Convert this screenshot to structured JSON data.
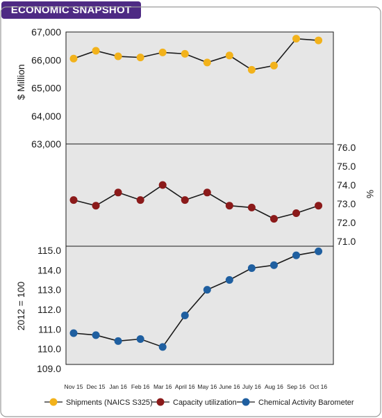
{
  "header": {
    "badge": "ECONOMIC SNAPSHOT"
  },
  "colors": {
    "badge_bg": "#4e2a84",
    "shipments": "#f2b21b",
    "capacity": "#8b1a1a",
    "cab": "#1f5fa0",
    "panel_bg": "#e6e6e6"
  },
  "chart_data": [
    {
      "type": "line",
      "ylabel": "$ Million",
      "ylim": [
        63000,
        67000
      ],
      "yticks": [
        "67,000",
        "66,000",
        "65,000",
        "64,000",
        "63,000"
      ],
      "categories": [
        "Nov 15",
        "Dec 15",
        "Jan 16",
        "Feb 16",
        "Mar 16",
        "April 16",
        "May 16",
        "June 16",
        "July 16",
        "Aug 16",
        "Sep 16",
        "Oct 16"
      ],
      "series": [
        {
          "name": "Shipments (NAICS S325)",
          "values": [
            66050,
            66330,
            66130,
            66090,
            66270,
            66220,
            65910,
            66160,
            65650,
            65800,
            66760,
            66700
          ]
        }
      ]
    },
    {
      "type": "line",
      "ylabel": "%",
      "ylim": [
        71.0,
        76.0
      ],
      "yticks": [
        "76.0",
        "75.0",
        "74.0",
        "73.0",
        "72.0",
        "71.0"
      ],
      "categories": [
        "Nov 15",
        "Dec 15",
        "Jan 16",
        "Feb 16",
        "Mar 16",
        "April 16",
        "May 16",
        "June 16",
        "July 16",
        "Aug 16",
        "Sep 16",
        "Oct 16"
      ],
      "series": [
        {
          "name": "Capacity utilization",
          "values": [
            73.2,
            72.9,
            73.6,
            73.2,
            74.0,
            73.2,
            73.6,
            72.9,
            72.8,
            72.2,
            72.5,
            72.9
          ]
        }
      ]
    },
    {
      "type": "line",
      "ylabel": "2012 = 100",
      "ylim": [
        109.0,
        115.0
      ],
      "yticks": [
        "115.0",
        "114.0",
        "113.0",
        "112.0",
        "111.0",
        "110.0",
        "109.0"
      ],
      "categories": [
        "Nov 15",
        "Dec 15",
        "Jan 16",
        "Feb 16",
        "Mar 16",
        "April 16",
        "May 16",
        "June 16",
        "July 16",
        "Aug 16",
        "Sep 16",
        "Oct 16"
      ],
      "series": [
        {
          "name": "Chemical Activity Barometer",
          "values": [
            110.8,
            110.7,
            110.4,
            110.5,
            110.1,
            111.7,
            113.0,
            113.5,
            114.1,
            114.25,
            114.75,
            114.95
          ]
        }
      ]
    }
  ]
}
